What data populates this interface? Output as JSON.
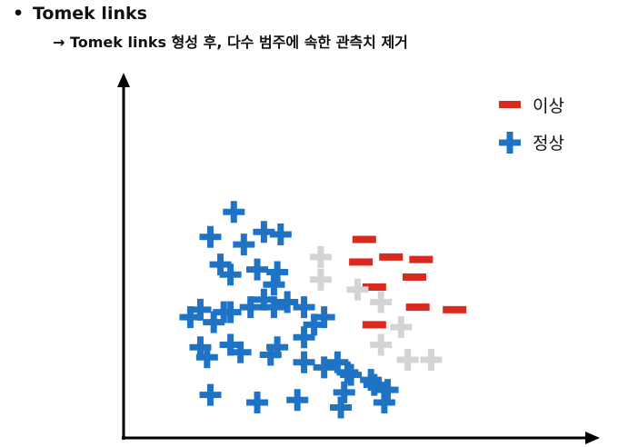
{
  "header": {
    "bullet": "•",
    "title": "Tomek links",
    "subtitle": "→ Tomek links 형성 후, 다수 범주에 속한 관측치 제거"
  },
  "legend": {
    "anomaly_label": "이상",
    "normal_label": "정상"
  },
  "colors": {
    "normal": "#1e73c4",
    "anomaly": "#d92a20",
    "removed": "#d4d4d4",
    "axis": "#000000"
  },
  "chart_data": {
    "type": "scatter",
    "title": "",
    "xlabel": "",
    "ylabel": "",
    "xlim": [
      0,
      100
    ],
    "ylim": [
      0,
      100
    ],
    "series": [
      {
        "name": "정상",
        "marker": "plus",
        "points": [
          [
            21,
            80
          ],
          [
            14,
            70
          ],
          [
            30,
            72
          ],
          [
            35,
            71
          ],
          [
            24,
            67
          ],
          [
            17,
            59
          ],
          [
            20,
            55
          ],
          [
            28,
            57
          ],
          [
            34,
            56
          ],
          [
            33,
            51
          ],
          [
            30,
            45
          ],
          [
            37,
            44
          ],
          [
            18,
            40
          ],
          [
            8,
            38
          ],
          [
            11,
            41
          ],
          [
            15,
            36
          ],
          [
            20,
            40
          ],
          [
            26,
            42
          ],
          [
            33,
            42
          ],
          [
            42,
            42
          ],
          [
            45,
            35
          ],
          [
            48,
            38
          ],
          [
            42,
            30
          ],
          [
            34,
            26
          ],
          [
            20,
            27
          ],
          [
            11,
            26
          ],
          [
            13,
            22
          ],
          [
            23,
            24
          ],
          [
            32,
            23
          ],
          [
            42,
            20
          ],
          [
            48,
            18
          ],
          [
            52,
            20
          ],
          [
            55,
            16
          ],
          [
            56,
            15
          ],
          [
            62,
            13
          ],
          [
            63,
            11
          ],
          [
            67,
            9
          ],
          [
            54,
            8
          ],
          [
            14,
            7
          ],
          [
            28,
            4
          ],
          [
            40,
            5
          ],
          [
            53,
            2
          ],
          [
            66,
            4
          ]
        ]
      },
      {
        "name": "이상",
        "marker": "minus",
        "points": [
          [
            60,
            69
          ],
          [
            59,
            60
          ],
          [
            68,
            62
          ],
          [
            77,
            61
          ],
          [
            75,
            54
          ],
          [
            63,
            50
          ],
          [
            76,
            42
          ],
          [
            87,
            41
          ],
          [
            63,
            35
          ]
        ]
      },
      {
        "name": "removed",
        "marker": "plus",
        "points": [
          [
            47,
            62
          ],
          [
            47,
            53
          ],
          [
            58,
            49
          ],
          [
            65,
            44
          ],
          [
            71,
            34
          ],
          [
            65,
            27
          ],
          [
            73,
            21
          ],
          [
            80,
            21
          ]
        ]
      }
    ]
  }
}
